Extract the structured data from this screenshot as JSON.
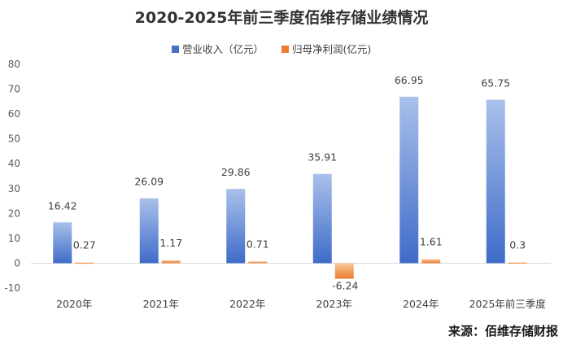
{
  "chart_data": {
    "type": "bar",
    "title": "2020-2025年前三季度佰维存储业绩情况",
    "categories": [
      "2020年",
      "2021年",
      "2022年",
      "2023年",
      "2024年",
      "2025年前三季度"
    ],
    "series": [
      {
        "name": "营业收入（亿元）",
        "values": [
          16.42,
          26.09,
          29.86,
          35.91,
          66.95,
          65.75
        ],
        "color_top": "#a9c0ea",
        "color_bottom": "#3f6cc9"
      },
      {
        "name": "归母净利润(亿元)",
        "values": [
          0.27,
          1.17,
          0.71,
          -6.24,
          1.61,
          0.3
        ],
        "color_top": "#f8c89a",
        "color_bottom": "#ec7a2c"
      }
    ],
    "data_labels": [
      [
        "16.42",
        "26.09",
        "29.86",
        "35.91",
        "66.95",
        "65.75"
      ],
      [
        "0.27",
        "1.17",
        "0.71",
        "-6.24",
        "1.61",
        "0.3"
      ]
    ],
    "yticks": [
      -10,
      0,
      10,
      20,
      30,
      40,
      50,
      60,
      70,
      80
    ],
    "ylim": [
      -10,
      80
    ],
    "legend_position": "top-center",
    "grid": false
  },
  "source": "来源：佰维存储财报"
}
